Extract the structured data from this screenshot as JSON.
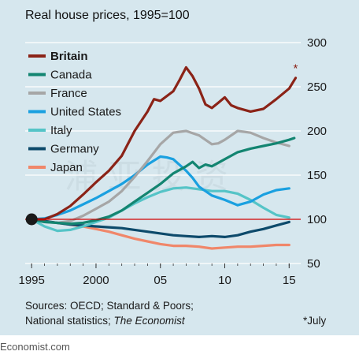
{
  "chart_data": {
    "type": "line",
    "title": "Real house prices, 1995=100",
    "ylim": [
      50,
      300
    ],
    "yticks": [
      50,
      100,
      150,
      200,
      250,
      300
    ],
    "xlim": [
      1994.5,
      2015.9
    ],
    "xticks": [
      {
        "value": 1995,
        "label": "1995"
      },
      {
        "value": 2000,
        "label": "2000"
      },
      {
        "value": 2005,
        "label": "05"
      },
      {
        "value": 2010,
        "label": "10"
      },
      {
        "value": 2015,
        "label": "15"
      }
    ],
    "baseline": 100,
    "baseline_color": "#cc0000",
    "start_marker": {
      "x": 1995,
      "y": 100
    },
    "series": [
      {
        "name": "Britain",
        "color": "#8b2317",
        "x": [
          1995,
          1996,
          1997,
          1998,
          1999,
          2000,
          2001,
          2002,
          2003,
          2004,
          2004.5,
          2005,
          2006,
          2006.5,
          2007,
          2007.5,
          2008,
          2008.5,
          2009,
          2009.5,
          2010,
          2010.5,
          2011,
          2012,
          2013,
          2014,
          2015,
          2015.5
        ],
        "y": [
          100,
          100,
          106,
          115,
          128,
          142,
          155,
          172,
          200,
          222,
          236,
          234,
          245,
          258,
          272,
          262,
          248,
          230,
          226,
          232,
          238,
          229,
          226,
          222,
          225,
          236,
          248,
          260
        ]
      },
      {
        "name": "Canada",
        "color": "#138571",
        "x": [
          1995,
          1996,
          1997,
          1998,
          1999,
          2000,
          2001,
          2002,
          2003,
          2004,
          2005,
          2006,
          2007,
          2007.5,
          2008,
          2008.5,
          2009,
          2010,
          2011,
          2012,
          2013,
          2014,
          2015,
          2015.4
        ],
        "y": [
          100,
          97,
          96,
          95,
          96,
          99,
          103,
          110,
          120,
          130,
          140,
          152,
          160,
          165,
          158,
          162,
          160,
          168,
          176,
          180,
          183,
          186,
          190,
          192
        ]
      },
      {
        "name": "France",
        "color": "#a6a6a6",
        "x": [
          1995,
          1996,
          1997,
          1998,
          1999,
          2000,
          2001,
          2002,
          2003,
          2004,
          2005,
          2006,
          2007,
          2008,
          2009,
          2009.5,
          2010,
          2011,
          2012,
          2013,
          2014,
          2015
        ],
        "y": [
          100,
          97,
          96,
          98,
          104,
          112,
          120,
          132,
          148,
          166,
          185,
          198,
          200,
          195,
          185,
          186,
          190,
          200,
          198,
          192,
          187,
          183
        ]
      },
      {
        "name": "United States",
        "color": "#1aa0e0",
        "x": [
          1995,
          1996,
          1997,
          1998,
          1999,
          2000,
          2001,
          2002,
          2003,
          2004,
          2005,
          2005.5,
          2006,
          2007,
          2007.5,
          2008,
          2009,
          2010,
          2011,
          2012,
          2013,
          2014,
          2015
        ],
        "y": [
          100,
          101,
          105,
          110,
          117,
          124,
          132,
          140,
          150,
          162,
          171,
          170,
          168,
          155,
          147,
          137,
          127,
          122,
          116,
          120,
          128,
          133,
          135
        ]
      },
      {
        "name": "Italy",
        "color": "#55c4c7",
        "x": [
          1995,
          1996,
          1997,
          1998,
          1999,
          2000,
          2001,
          2002,
          2003,
          2004,
          2005,
          2006,
          2007,
          2008,
          2009,
          2010,
          2011,
          2012,
          2013,
          2014,
          2015
        ],
        "y": [
          100,
          92,
          87,
          88,
          92,
          97,
          102,
          110,
          118,
          125,
          131,
          135,
          136,
          134,
          132,
          132,
          129,
          122,
          113,
          105,
          102
        ]
      },
      {
        "name": "Germany",
        "color": "#0d4a6b",
        "x": [
          1995,
          1996,
          1997,
          1998,
          1999,
          2000,
          2001,
          2002,
          2003,
          2004,
          2005,
          2006,
          2007,
          2008,
          2009,
          2010,
          2011,
          2012,
          2013,
          2014,
          2015
        ],
        "y": [
          100,
          98,
          96,
          94,
          93,
          92,
          91,
          90,
          88,
          86,
          84,
          82,
          81,
          80,
          81,
          80,
          82,
          86,
          89,
          93,
          97
        ]
      },
      {
        "name": "Japan",
        "color": "#f0876a",
        "x": [
          1995,
          1996,
          1997,
          1998,
          1999,
          2000,
          2001,
          2002,
          2003,
          2004,
          2005,
          2006,
          2007,
          2008,
          2009,
          2010,
          2011,
          2012,
          2013,
          2014,
          2015
        ],
        "y": [
          100,
          98,
          96,
          94,
          92,
          89,
          86,
          82,
          78,
          75,
          72,
          70,
          70,
          69,
          67,
          68,
          69,
          69,
          70,
          71,
          71
        ]
      }
    ],
    "annotations": [
      {
        "text": "*",
        "x": 2015.5,
        "y": 270
      }
    ]
  },
  "sources_line1": "Sources: OECD; Standard & Poors;",
  "sources_line2": "National statistics; ",
  "sources_line2_italic": "The Economist",
  "footnote": "*July",
  "footer_text": "Economist.com",
  "watermark_text": "浦 亚 投 资"
}
